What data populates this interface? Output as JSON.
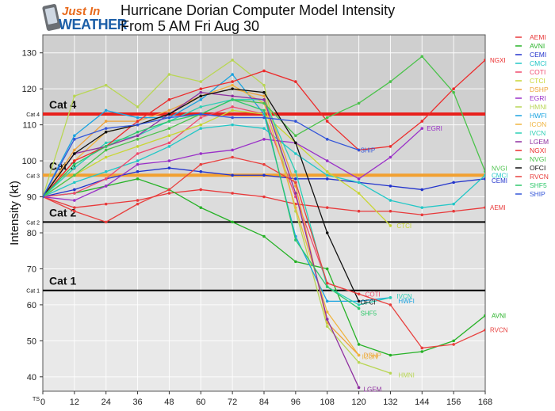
{
  "logo": {
    "line1": "Just In",
    "line2": "WEATHER"
  },
  "chart_data": {
    "type": "line",
    "title": "Hurricane Dorian Computer Model Intensity",
    "subtitle": "From 5 AM Fri Aug 30",
    "ylabel": "Intensity (kt)",
    "xlabel": "",
    "xlim": [
      0,
      168
    ],
    "ylim": [
      36,
      135
    ],
    "x_ticks": [
      0,
      12,
      24,
      36,
      48,
      60,
      72,
      84,
      96,
      108,
      120,
      132,
      144,
      156,
      168
    ],
    "y_ticks": [
      40,
      50,
      60,
      70,
      80,
      90,
      100,
      110,
      120,
      130
    ],
    "grid": true,
    "legend_position": "right",
    "categories": [
      {
        "label": "Cat 4",
        "threshold": 113,
        "color": "#e8201c"
      },
      {
        "label": "Cat 3",
        "threshold": 96,
        "color": "#f2a030"
      },
      {
        "label": "Cat 2",
        "threshold": 83,
        "color": "#000000"
      },
      {
        "label": "Cat 1",
        "threshold": 64,
        "color": "#000000"
      },
      {
        "label": "TS",
        "threshold": 34,
        "color": "#000000"
      }
    ],
    "series": [
      {
        "name": "AEMI",
        "color": "#e8393a",
        "x": [
          0,
          12,
          24,
          36,
          48,
          60,
          72,
          84,
          96,
          108,
          120,
          132,
          144,
          156,
          168
        ],
        "values": [
          90,
          87,
          88,
          89,
          91,
          92,
          91,
          90,
          88,
          87,
          86,
          86,
          85,
          86,
          87
        ]
      },
      {
        "name": "AVNI",
        "color": "#27b227",
        "x": [
          0,
          12,
          24,
          36,
          48,
          60,
          72,
          84,
          96,
          108,
          120,
          132,
          144,
          156,
          168
        ],
        "values": [
          90,
          91,
          93,
          95,
          92,
          87,
          83,
          79,
          72,
          70,
          49,
          46,
          47,
          50,
          57
        ]
      },
      {
        "name": "CEMI",
        "color": "#2233cc",
        "x": [
          0,
          12,
          24,
          36,
          48,
          60,
          72,
          84,
          96,
          108,
          120,
          132,
          144,
          156,
          168
        ],
        "values": [
          90,
          92,
          95,
          97,
          98,
          97,
          96,
          96,
          95,
          95,
          94,
          93,
          92,
          94,
          95
        ]
      },
      {
        "name": "CMCI",
        "color": "#22c7c7",
        "x": [
          0,
          12,
          24,
          36,
          48,
          60,
          72,
          84,
          96,
          108,
          120,
          132,
          144,
          156,
          168
        ],
        "values": [
          90,
          94,
          97,
          100,
          104,
          109,
          110,
          109,
          102,
          96,
          94,
          89,
          87,
          88,
          96
        ]
      },
      {
        "name": "COTI",
        "color": "#f04a6e",
        "x": [
          0,
          12,
          24,
          36,
          48,
          60,
          72,
          84,
          96,
          108,
          120
        ],
        "values": [
          90,
          91,
          95,
          102,
          105,
          112,
          115,
          113,
          90,
          66,
          63
        ]
      },
      {
        "name": "CTCI",
        "color": "#c9d633",
        "x": [
          0,
          12,
          24,
          36,
          48,
          60,
          72,
          84,
          96,
          108,
          120,
          132
        ],
        "values": [
          90,
          96,
          101,
          104,
          107,
          110,
          114,
          113,
          105,
          97,
          91,
          82
        ]
      },
      {
        "name": "DSHP",
        "color": "#eda33a",
        "x": [
          0,
          12,
          24,
          36,
          48,
          60,
          72,
          84,
          96,
          108,
          120
        ],
        "values": [
          90,
          103,
          111,
          111,
          114,
          118,
          120,
          118,
          93,
          55,
          46
        ]
      },
      {
        "name": "EGRI",
        "color": "#9a30c8",
        "x": [
          0,
          12,
          24,
          36,
          48,
          60,
          72,
          84,
          96,
          108,
          120,
          132,
          144
        ],
        "values": [
          90,
          89,
          93,
          99,
          100,
          102,
          103,
          106,
          105,
          100,
          95,
          101,
          109
        ]
      },
      {
        "name": "HMNI",
        "color": "#b9d655",
        "x": [
          0,
          12,
          24,
          36,
          48,
          60,
          72,
          84,
          96,
          108,
          120,
          132
        ],
        "values": [
          90,
          118,
          121,
          115,
          124,
          122,
          128,
          121,
          86,
          54,
          44,
          41
        ]
      },
      {
        "name": "HWFI",
        "color": "#1aa3e0",
        "x": [
          0,
          12,
          24,
          36,
          48,
          60,
          72,
          84,
          96,
          108,
          120,
          132
        ],
        "values": [
          90,
          107,
          114,
          112,
          112,
          117,
          124,
          113,
          79,
          61,
          61,
          62
        ]
      },
      {
        "name": "ICON",
        "color": "#f0b540",
        "x": [
          0,
          12,
          24,
          36,
          48,
          60,
          72,
          84,
          96,
          108,
          120
        ],
        "values": [
          90,
          100,
          108,
          110,
          113,
          118,
          121,
          116,
          87,
          58,
          46
        ]
      },
      {
        "name": "IVCN",
        "color": "#2ccfb5",
        "x": [
          0,
          12,
          24,
          36,
          48,
          60,
          72,
          84,
          96,
          108,
          120,
          132
        ],
        "values": [
          90,
          98,
          105,
          107,
          111,
          115,
          117,
          117,
          97,
          65,
          60,
          62
        ]
      },
      {
        "name": "LGEM",
        "color": "#8f2fa0",
        "x": [
          0,
          12,
          24,
          36,
          48,
          60,
          72,
          84,
          96,
          108,
          120
        ],
        "values": [
          90,
          102,
          104,
          107,
          113,
          119,
          118,
          117,
          91,
          56,
          37
        ]
      },
      {
        "name": "NGXI",
        "color": "#ec2c2c",
        "x": [
          0,
          12,
          24,
          36,
          48,
          60,
          72,
          84,
          96,
          108,
          120,
          132,
          144,
          156,
          168
        ],
        "values": [
          90,
          100,
          104,
          111,
          117,
          120,
          122,
          125,
          122,
          111,
          103,
          104,
          111,
          120,
          128
        ]
      },
      {
        "name": "NVGI",
        "color": "#4bc24b",
        "x": [
          0,
          12,
          24,
          36,
          48,
          60,
          72,
          84,
          96,
          108,
          120,
          132,
          144,
          156,
          168
        ],
        "values": [
          90,
          96,
          103,
          106,
          109,
          113,
          117,
          116,
          107,
          112,
          116,
          122,
          129,
          119,
          97
        ]
      },
      {
        "name": "OFCI",
        "color": "#111111",
        "x": [
          0,
          12,
          24,
          36,
          48,
          60,
          72,
          84,
          96,
          108,
          120
        ],
        "values": [
          90,
          102,
          108,
          110,
          113,
          118,
          120,
          119,
          105,
          80,
          61
        ]
      },
      {
        "name": "RVCN",
        "color": "#e8403e",
        "x": [
          0,
          12,
          24,
          36,
          48,
          60,
          72,
          84,
          96,
          108,
          120,
          132,
          144,
          156,
          168
        ],
        "values": [
          90,
          86,
          83,
          88,
          92,
          99,
          101,
          99,
          94,
          66,
          63,
          60,
          48,
          49,
          53
        ]
      },
      {
        "name": "SHF5",
        "color": "#2ec86a",
        "x": [
          0,
          12,
          24,
          36,
          48,
          60,
          72,
          84,
          96,
          108,
          120
        ],
        "values": [
          90,
          99,
          104,
          108,
          111,
          113,
          117,
          114,
          78,
          65,
          59
        ]
      },
      {
        "name": "SHIP",
        "color": "#3355d8",
        "x": [
          0,
          12,
          24,
          36,
          48,
          60,
          72,
          84,
          96,
          108,
          120
        ],
        "values": [
          90,
          106,
          109,
          110,
          112,
          113,
          112,
          112,
          111,
          106,
          103
        ]
      }
    ]
  }
}
